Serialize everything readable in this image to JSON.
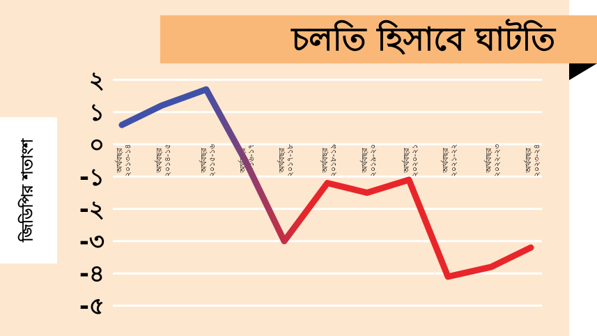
{
  "chart_data": {
    "type": "line",
    "title": "চলতি হিসাবে ঘাটতি",
    "ylabel": "জিডিপির শতাংশ",
    "xlabel": "",
    "ylim": [
      -5,
      2
    ],
    "yticks": [
      2,
      1,
      0,
      -1,
      -2,
      -3,
      -4,
      -5
    ],
    "ytick_labels": [
      "২",
      "১",
      "০",
      "-১",
      "-২",
      "-৩",
      "-৪",
      "-৫"
    ],
    "categories": [
      [
        "অর্থবছর",
        "২০১৩-১৪"
      ],
      [
        "অর্থবছর",
        "২০১৪-১৫"
      ],
      [
        "অর্থবছর",
        "২০১৫-১৬"
      ],
      [
        "অর্থবছর",
        "২০১৬-১৭"
      ],
      [
        "অর্থবছর",
        "২০১৭-১৮"
      ],
      [
        "অর্থবছর",
        "২০১৮-১৯"
      ],
      [
        "অর্থবছর",
        "২০১৯-২০"
      ],
      [
        "অর্থবছর",
        "২০২০-২১"
      ],
      [
        "অর্থবছর",
        "২০২১-২২"
      ],
      [
        "অর্থবছর",
        "২০২২-২৩"
      ],
      [
        "অর্থবছর",
        "২০২৩-২৪"
      ]
    ],
    "values": [
      0.6,
      1.2,
      1.7,
      -0.5,
      -3.0,
      -1.2,
      -1.5,
      -1.1,
      -4.1,
      -3.8,
      -3.2
    ],
    "grid": true,
    "line_gradient": [
      "#3f51a8",
      "#e8262a"
    ],
    "grid_color": "#ffffff"
  },
  "colors": {
    "background": "#fde7cf",
    "banner": "#f9b878"
  }
}
